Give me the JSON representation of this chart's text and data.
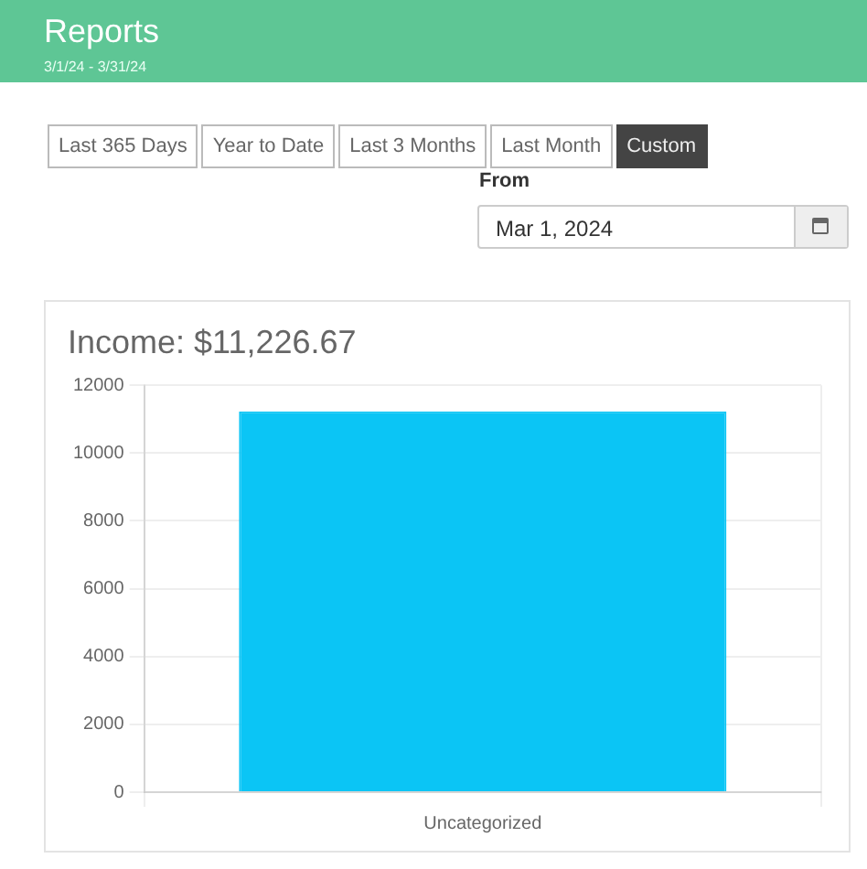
{
  "chart_data": {
    "type": "bar",
    "title": "Income: $11,226.67",
    "categories": [
      "Uncategorized"
    ],
    "series": [
      {
        "color": "#0bc5f5",
        "values": [
          11226.67
        ]
      }
    ],
    "ylim": [
      0,
      12000
    ],
    "yticks": [
      0,
      2000,
      4000,
      6000,
      8000,
      10000,
      12000
    ],
    "grid": true,
    "legend": false,
    "annotations": [
      "Reports",
      "3/1/24 - 3/31/24",
      "Last 365 Days",
      "Year to Date",
      "Last 3 Months",
      "Last Month",
      "Custom",
      "From",
      "Mar 1, 2024"
    ]
  }
}
